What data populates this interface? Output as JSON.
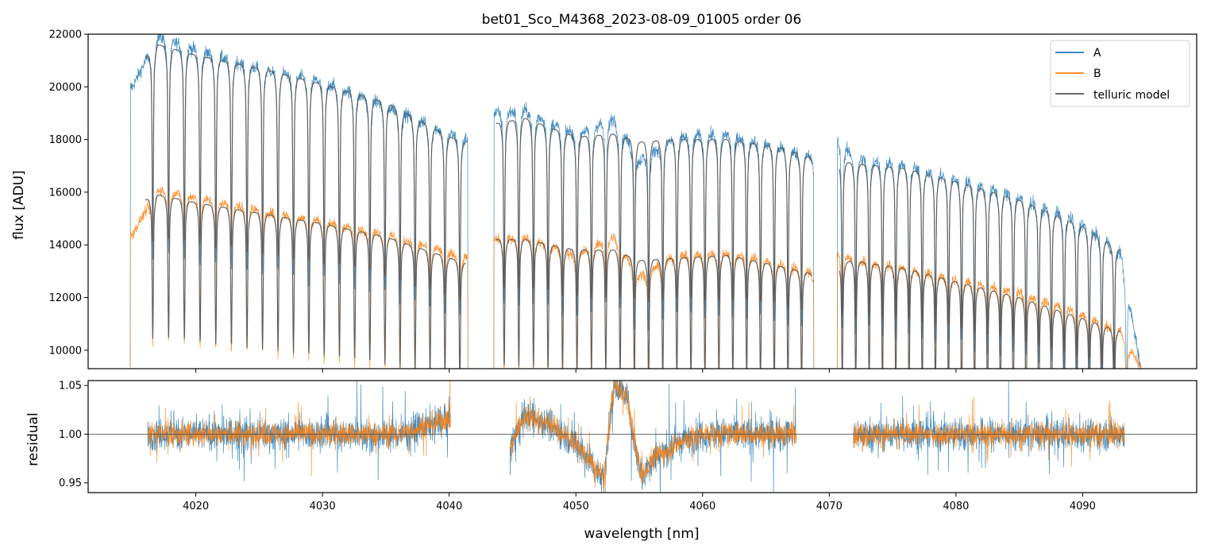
{
  "chart_data": {
    "type": "line",
    "title": "bet01_Sco_M4368_2023-08-09_01005  order 06",
    "xlabel": "wavelength [nm]",
    "colors": {
      "A": "#1f77b4",
      "B": "#ff7f0e",
      "telluric": "#555555"
    },
    "top_panel": {
      "ylabel": "flux [ADU]",
      "ylim": [
        9300,
        22000
      ],
      "yticks": [
        10000,
        12000,
        14000,
        16000,
        18000,
        20000,
        22000
      ],
      "ytick_labels": [
        "10000",
        "12000",
        "14000",
        "16000",
        "18000",
        "20000",
        "22000"
      ],
      "segments": [
        [
          4014.8,
          4041.5
        ],
        [
          4043.5,
          4068.8
        ],
        [
          4070.6,
          4094.6
        ]
      ],
      "series": [
        {
          "name": "A",
          "x": [
            4015,
            4017,
            4020,
            4025,
            4030,
            4035,
            4040,
            4041.5,
            4043.5,
            4046,
            4050,
            4053,
            4055,
            4058,
            4062,
            4066,
            4068.8,
            4070.6,
            4072,
            4076,
            4080,
            4085,
            4090,
            4093,
            4094.6
          ],
          "y": [
            20000,
            21900,
            21400,
            20700,
            20200,
            19300,
            18200,
            18000,
            19000,
            19100,
            18200,
            18800,
            17200,
            18100,
            18200,
            17700,
            17300,
            18000,
            17300,
            17000,
            16500,
            15800,
            14800,
            13700,
            9300
          ]
        },
        {
          "name": "B",
          "x": [
            4015,
            4017,
            4020,
            4025,
            4030,
            4035,
            4040,
            4041.5,
            4043.5,
            4046,
            4050,
            4053,
            4055,
            4058,
            4062,
            4066,
            4068.8,
            4070.6,
            4072,
            4076,
            4080,
            4085,
            4090,
            4093,
            4094.6
          ],
          "y": [
            14400,
            16100,
            15800,
            15300,
            14900,
            14400,
            13700,
            13500,
            14200,
            14300,
            13600,
            14300,
            12800,
            13600,
            13700,
            13300,
            12900,
            13700,
            13400,
            13100,
            12700,
            12200,
            11400,
            10700,
            9300
          ]
        },
        {
          "name": "telluric model",
          "x": [
            4016,
            4017,
            4020,
            4025,
            4030,
            4035,
            4040,
            4041.3,
            4043.6,
            4046,
            4050,
            4053,
            4055,
            4058,
            4062,
            4066,
            4068.6,
            4071.8,
            4076,
            4080,
            4085,
            4090,
            4093
          ],
          "yA": [
            21100,
            21600,
            21200,
            20700,
            20100,
            19400,
            18100,
            17900,
            18600,
            18800,
            18100,
            18200,
            17900,
            18000,
            18000,
            17700,
            17300,
            17100,
            16900,
            16400,
            15700,
            14700,
            13800
          ],
          "yB": [
            15700,
            15900,
            15600,
            15200,
            14800,
            14300,
            13500,
            13300,
            14200,
            14200,
            13800,
            13800,
            13400,
            13500,
            13600,
            13200,
            12900,
            13400,
            13100,
            12600,
            12000,
            11200,
            10700
          ]
        }
      ]
    },
    "bottom_panel": {
      "ylabel": "residual",
      "ylim": [
        0.94,
        1.055
      ],
      "yticks": [
        0.95,
        1.0,
        1.05
      ],
      "ytick_labels": [
        "0.95",
        "1.00",
        "1.05"
      ],
      "reference_line": 1.0,
      "segments": [
        [
          4016.2,
          4040.1
        ],
        [
          4044.8,
          4067.4
        ],
        [
          4071.9,
          4093.3
        ]
      ],
      "trend": {
        "x": [
          4044.8,
          4046,
          4048,
          4050,
          4051.5,
          4052.2,
          4053,
          4054,
          4054.5,
          4055.2,
          4056,
          4058,
          4060
        ],
        "y": [
          0.985,
          1.02,
          1.01,
          0.99,
          0.965,
          0.955,
          1.05,
          1.04,
          1.0,
          0.955,
          0.975,
          0.99,
          1.0
        ]
      }
    },
    "xlim": [
      4011.5,
      4099.0
    ],
    "xticks": [
      4020,
      4030,
      4040,
      4050,
      4060,
      4070,
      4080,
      4090
    ],
    "xtick_labels": [
      "4020",
      "4030",
      "4040",
      "4050",
      "4060",
      "4070",
      "4080",
      "4090"
    ],
    "legend": {
      "position": "top-right",
      "entries": [
        "A",
        "B",
        "telluric model"
      ]
    }
  }
}
